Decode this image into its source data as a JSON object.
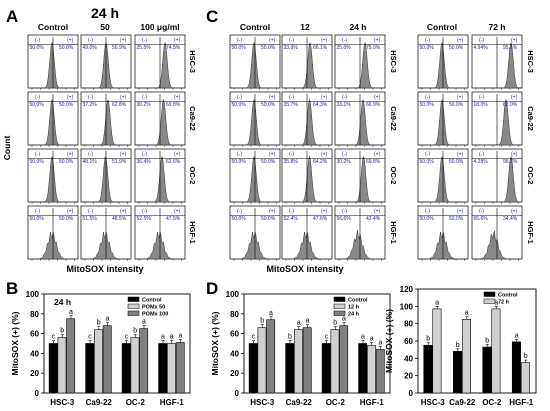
{
  "panels": {
    "A": {
      "letter": "A",
      "title": "24 h",
      "cols": [
        "Control",
        "50",
        "100 μg/ml"
      ],
      "x_label": "MitoSOX intensity",
      "y_label": "Count",
      "rows": [
        {
          "name": "HSC-3",
          "pct": [
            [
              "50.0%",
              "50.0%"
            ],
            [
              "49.0%",
              "50.9%"
            ],
            [
              "25.5%",
              "74.5%"
            ]
          ],
          "shift": [
            0,
            0.02,
            0.12
          ]
        },
        {
          "name": "Ca9-22",
          "pct": [
            [
              "50.0%",
              "50.0%"
            ],
            [
              "37.2%",
              "62.8%"
            ],
            [
              "30.2%",
              "69.8%"
            ]
          ],
          "shift": [
            0,
            0.06,
            0.09
          ]
        },
        {
          "name": "OC-2",
          "pct": [
            [
              "50.0%",
              "50.0%"
            ],
            [
              "48.1%",
              "51.9%"
            ],
            [
              "36.4%",
              "63.6%"
            ]
          ],
          "shift": [
            0,
            0.01,
            0.06
          ]
        },
        {
          "name": "HGF-1",
          "pct": [
            [
              "50.0%",
              "50.0%"
            ],
            [
              "51.5%",
              "48.5%"
            ],
            [
              "52.5%",
              "47.5%"
            ]
          ],
          "shift": [
            0,
            0,
            0
          ]
        }
      ]
    },
    "C": {
      "letter": "C",
      "cols": [
        "Control",
        "12",
        "24 h",
        "Control",
        "72 h"
      ],
      "x_label": "MitoSOX intensity",
      "rows": [
        {
          "name": "HSC-3",
          "pct": [
            [
              "50.0%",
              "50.0%"
            ],
            [
              "33.9%",
              "66.1%"
            ],
            [
              "25.0%",
              "75.0%"
            ],
            [
              "50.0%",
              "50.0%"
            ],
            [
              "4.94%",
              "95.1%"
            ]
          ],
          "shift": [
            0,
            0.08,
            0.12,
            0,
            0.3
          ]
        },
        {
          "name": "Ca9-22",
          "pct": [
            [
              "50.0%",
              "50.0%"
            ],
            [
              "35.7%",
              "64.3%"
            ],
            [
              "33.1%",
              "66.9%"
            ],
            [
              "50.0%",
              "50.0%"
            ],
            [
              "18.0%",
              "82.0%"
            ]
          ],
          "shift": [
            0,
            0.07,
            0.08,
            0,
            0.2
          ]
        },
        {
          "name": "OC-2",
          "pct": [
            [
              "50.0%",
              "50.0%"
            ],
            [
              "35.8%",
              "64.2%"
            ],
            [
              "30.2%",
              "69.8%"
            ],
            [
              "50.0%",
              "50.0%"
            ],
            [
              "4.28%",
              "95.7%"
            ]
          ],
          "shift": [
            0,
            0.07,
            0.09,
            0,
            0.3
          ]
        },
        {
          "name": "HGF-1",
          "pct": [
            [
              "50.0%",
              "50.0%"
            ],
            [
              "52.4%",
              "47.6%"
            ],
            [
              "56.6%",
              "43.4%"
            ],
            [
              "50.0%",
              "50.0%"
            ],
            [
              "65.6%",
              "34.4%"
            ]
          ],
          "shift": [
            0,
            0,
            -0.02,
            0,
            -0.05
          ]
        }
      ]
    }
  },
  "chart_data": [
    {
      "id": "B",
      "type": "bar",
      "letter": "B",
      "title": "24 h",
      "ylabel": "MitoSOX (+) (%)",
      "ylim": [
        0,
        100
      ],
      "yticks": [
        0,
        20,
        40,
        60,
        80,
        100
      ],
      "categories": [
        "HSC-3",
        "Ca9-22",
        "OC-2",
        "HGF-1"
      ],
      "series": [
        {
          "name": "Control",
          "color": "#000000",
          "values": [
            50,
            50,
            50,
            50
          ]
        },
        {
          "name": "POMx 50",
          "color": "#d0d0d0",
          "values": [
            56,
            64,
            56,
            50
          ]
        },
        {
          "name": "POMx 100",
          "color": "#808080",
          "values": [
            75,
            68,
            65,
            51
          ]
        }
      ],
      "letters": [
        [
          "c",
          "b",
          "a"
        ],
        [
          "c",
          "b",
          "a"
        ],
        [
          "c",
          "b",
          "a"
        ],
        [
          "a",
          "a",
          "a"
        ]
      ]
    },
    {
      "id": "D1",
      "type": "bar",
      "letter": "D",
      "ylabel": "MitoSOX (+) (%)",
      "ylim": [
        0,
        100
      ],
      "yticks": [
        0,
        20,
        40,
        60,
        80,
        100
      ],
      "categories": [
        "HSC-3",
        "Ca9-22",
        "OC-2",
        "HGF-1"
      ],
      "series": [
        {
          "name": "Control",
          "color": "#000000",
          "values": [
            50,
            50,
            50,
            50
          ]
        },
        {
          "name": "12 h",
          "color": "#d0d0d0",
          "values": [
            66,
            64,
            64,
            48
          ]
        },
        {
          "name": "24 h",
          "color": "#808080",
          "values": [
            74,
            66,
            68,
            44
          ]
        }
      ],
      "letters": [
        [
          "c",
          "b",
          "a"
        ],
        [
          "b",
          "a",
          "a"
        ],
        [
          "c",
          "b",
          "a"
        ],
        [
          "a",
          "a",
          "a"
        ]
      ]
    },
    {
      "id": "D2",
      "type": "bar",
      "ylabel": "MitoSOX (+) (%)",
      "ylim": [
        0,
        120
      ],
      "yticks": [
        0,
        20,
        40,
        60,
        80,
        100,
        120
      ],
      "categories": [
        "HSC-3",
        "Ca9-22",
        "OC-2",
        "HGF-1"
      ],
      "series": [
        {
          "name": "Control",
          "color": "#000000",
          "values": [
            55,
            48,
            53,
            59
          ]
        },
        {
          "name": "72 h",
          "color": "#d0d0d0",
          "values": [
            97,
            85,
            97,
            35
          ]
        }
      ],
      "letters": [
        [
          "b",
          "a"
        ],
        [
          "b",
          "a"
        ],
        [
          "b",
          "a"
        ],
        [
          "a",
          "b"
        ]
      ]
    }
  ]
}
